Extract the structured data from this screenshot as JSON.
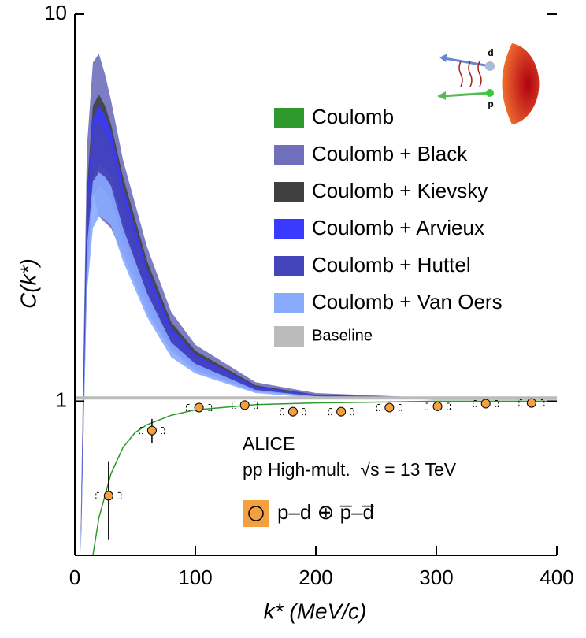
{
  "chart_data": {
    "type": "band",
    "x_label": "k* (MeV/c)",
    "y_label": "C(k*)",
    "xlim": [
      0,
      400
    ],
    "xticks": [
      0,
      100,
      200,
      300,
      400
    ],
    "ylim": [
      0.4,
      10
    ],
    "yticks": [
      1,
      10
    ],
    "log_y": true,
    "x": [
      5,
      10,
      15,
      20,
      25,
      30,
      40,
      60,
      80,
      100,
      150,
      200,
      300,
      400
    ],
    "bands": [
      {
        "name": "Coulomb + Black",
        "color": "#6f6fbd",
        "upper": [
          0.5,
          4.5,
          7.5,
          7.9,
          7.0,
          6.0,
          4.2,
          2.5,
          1.7,
          1.4,
          1.12,
          1.05,
          1.02,
          1.02
        ],
        "lower": [
          0.4,
          2.0,
          3.5,
          3.0,
          2.9,
          2.8,
          2.4,
          1.7,
          1.35,
          1.2,
          1.06,
          1.03,
          1.01,
          1.01
        ]
      },
      {
        "name": "Coulomb + Kievsky",
        "color": "#404040",
        "upper": [
          0.45,
          3.5,
          5.8,
          6.2,
          5.8,
          5.2,
          3.8,
          2.3,
          1.6,
          1.35,
          1.1,
          1.04,
          1.02,
          1.02
        ],
        "lower": [
          0.42,
          2.8,
          4.6,
          5.0,
          4.8,
          4.4,
          3.3,
          2.1,
          1.5,
          1.3,
          1.08,
          1.04,
          1.02,
          1.01
        ]
      },
      {
        "name": "Coulomb + Arvieux",
        "color": "#3a3aff",
        "upper": [
          0.45,
          3.3,
          5.4,
          5.8,
          5.5,
          5.0,
          3.6,
          2.2,
          1.55,
          1.32,
          1.09,
          1.04,
          1.02,
          1.01
        ],
        "lower": [
          0.42,
          2.4,
          3.8,
          4.1,
          4.0,
          3.8,
          2.9,
          1.9,
          1.4,
          1.25,
          1.07,
          1.03,
          1.01,
          1.01
        ]
      },
      {
        "name": "Coulomb + Huttel",
        "color": "#4444bb",
        "upper": [
          0.45,
          3.0,
          5.0,
          5.3,
          5.0,
          4.6,
          3.4,
          2.1,
          1.5,
          1.3,
          1.08,
          1.04,
          1.02,
          1.01
        ],
        "lower": [
          0.42,
          2.2,
          3.4,
          3.6,
          3.5,
          3.3,
          2.6,
          1.8,
          1.38,
          1.22,
          1.06,
          1.03,
          1.01,
          1.01
        ]
      },
      {
        "name": "Coulomb + Van Oers",
        "color": "#88aaff",
        "upper": [
          0.44,
          2.5,
          3.7,
          3.9,
          3.8,
          3.6,
          2.8,
          1.9,
          1.42,
          1.25,
          1.07,
          1.03,
          1.01,
          1.01
        ],
        "lower": [
          0.42,
          1.9,
          2.8,
          3.0,
          2.95,
          2.85,
          2.3,
          1.65,
          1.3,
          1.18,
          1.05,
          1.02,
          1.01,
          1.01
        ]
      }
    ],
    "coulomb": {
      "name": "Coulomb",
      "color": "#2e9a2e",
      "x": [
        15,
        20,
        30,
        40,
        50,
        60,
        80,
        100,
        150,
        200,
        300,
        400
      ],
      "values": [
        0.4,
        0.5,
        0.65,
        0.76,
        0.83,
        0.87,
        0.92,
        0.95,
        0.98,
        0.99,
        1.0,
        1.0
      ]
    },
    "baseline": {
      "name": "Baseline",
      "color": "#bbbbbb",
      "value": 1.02
    },
    "data": {
      "name": "p–d ⊕ p̅–d̅",
      "color": "#f5a040",
      "x": [
        28,
        64,
        103,
        141,
        181,
        221,
        261,
        301,
        341,
        379
      ],
      "values": [
        0.57,
        0.84,
        0.963,
        0.977,
        0.94,
        0.94,
        0.963,
        0.97,
        0.986,
        0.99
      ],
      "errors": [
        0.13,
        0.06,
        0.02,
        0.02,
        0.02,
        0.02,
        0.02,
        0.02,
        0.02,
        0.02
      ]
    },
    "annotations": [
      "ALICE",
      "pp High-mult.  √s = 13 TeV",
      "d",
      "p"
    ]
  }
}
